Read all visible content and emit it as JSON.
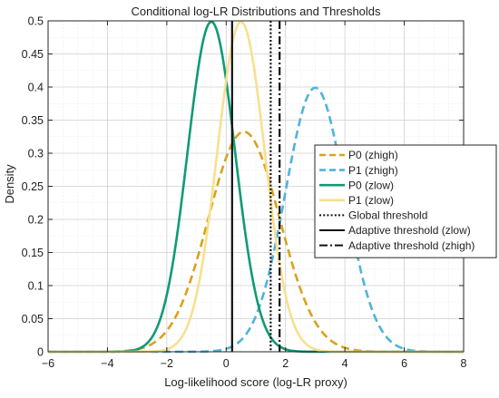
{
  "chart_data": {
    "type": "line",
    "title": "Conditional log-LR Distributions and Thresholds",
    "xlabel": "Log-likelihood score (log-LR proxy)",
    "ylabel": "Density",
    "xlim": [
      -6,
      8
    ],
    "ylim": [
      0,
      0.5
    ],
    "x_ticks": [
      -6,
      -4,
      -2,
      0,
      2,
      4,
      6,
      8
    ],
    "x_tick_labels": [
      "−6",
      "−4",
      "−2",
      "0",
      "2",
      "4",
      "6",
      "8"
    ],
    "y_ticks": [
      0,
      0.05,
      0.1,
      0.15,
      0.2,
      0.25,
      0.3,
      0.35,
      0.4,
      0.45,
      0.5
    ],
    "y_tick_labels": [
      "0",
      "0.05",
      "0.1",
      "0.15",
      "0.2",
      "0.25",
      "0.3",
      "0.35",
      "0.4",
      "0.45",
      "0.5"
    ],
    "grid": true,
    "minor_grid": true,
    "legend_position": "right",
    "series": [
      {
        "name": "P0 (zhigh)",
        "kind": "gaussian",
        "mean": 0.6,
        "sd": 1.2,
        "color": "#D9A21B",
        "style": "dashed"
      },
      {
        "name": "P1 (zhigh)",
        "kind": "gaussian",
        "mean": 3.0,
        "sd": 1.0,
        "color": "#4FB3DC",
        "style": "dashed"
      },
      {
        "name": "P0 (zlow)",
        "kind": "gaussian",
        "mean": -0.5,
        "sd": 0.8,
        "color": "#0F9B75",
        "style": "solid"
      },
      {
        "name": "P1 (zlow)",
        "kind": "gaussian",
        "mean": 0.5,
        "sd": 0.8,
        "color": "#F8E08E",
        "style": "solid"
      }
    ],
    "thresholds": [
      {
        "name": "Global threshold",
        "x": 1.5,
        "color": "#111111",
        "style": "dotted"
      },
      {
        "name": "Adaptive threshold (zlow)",
        "x": 0.2,
        "color": "#111111",
        "style": "solid"
      },
      {
        "name": "Adaptive threshold (zhigh)",
        "x": 1.8,
        "color": "#111111",
        "style": "dashdot"
      }
    ]
  }
}
